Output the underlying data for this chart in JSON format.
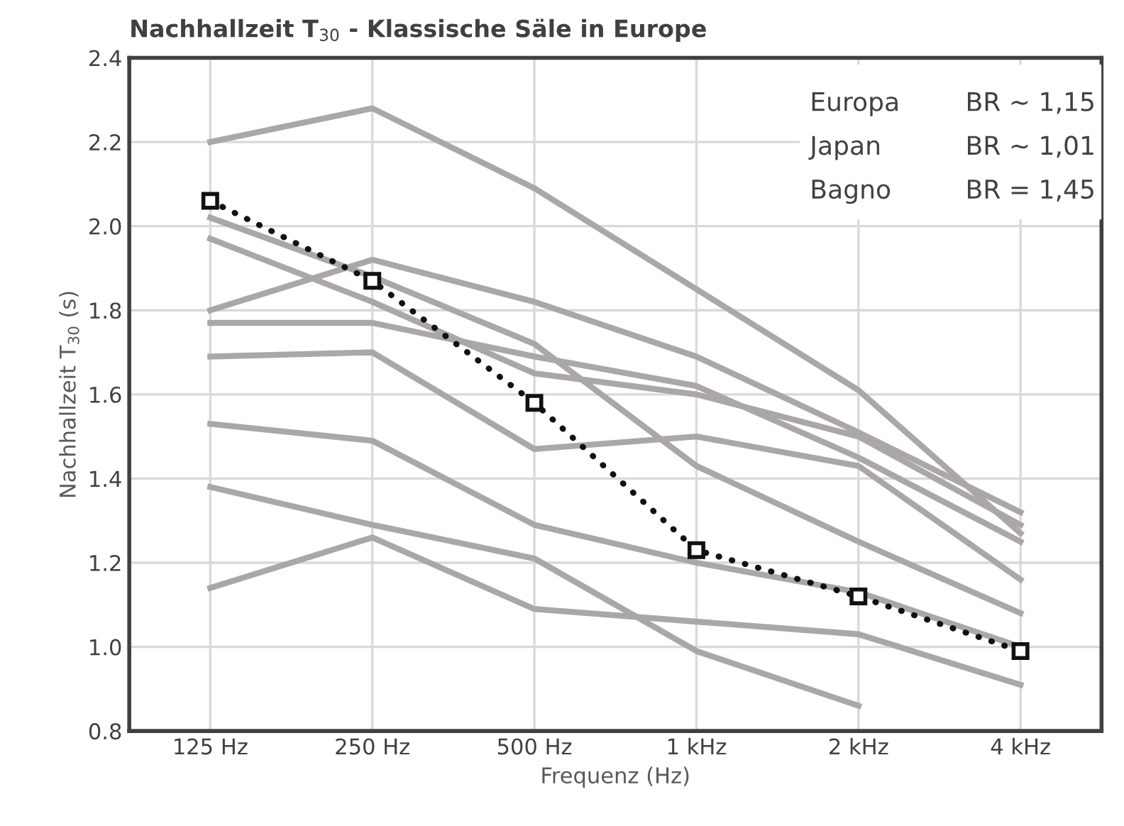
{
  "chart_data": {
    "type": "line",
    "title": "Nachhallzeit T$_{30}$ - Klassische Säle in Europe",
    "xlabel": "Frequenz (Hz)",
    "ylabel": "Nachhallzeit T$_{30}$ (s)",
    "categories": [
      "125 Hz",
      "250 Hz",
      "500 Hz",
      "1 kHz",
      "2 kHz",
      "4 kHz"
    ],
    "ylim": [
      0.8,
      2.4
    ],
    "yticks": [
      {
        "value": 0.8,
        "label": "0.8"
      },
      {
        "value": 1.0,
        "label": "1.0"
      },
      {
        "value": 1.2,
        "label": "1.2"
      },
      {
        "value": 1.4,
        "label": "1.4"
      },
      {
        "value": 1.6,
        "label": "1.6"
      },
      {
        "value": 1.8,
        "label": "1.8"
      },
      {
        "value": 2.0,
        "label": "2.0"
      },
      {
        "value": 2.2,
        "label": "2.2"
      },
      {
        "value": 2.4,
        "label": "2.4"
      }
    ],
    "grid": true,
    "legend": false,
    "series": [
      {
        "color": "#aba7a7",
        "values": [
          2.2,
          2.28,
          2.09,
          1.85,
          1.61,
          1.27
        ]
      },
      {
        "color": "#aba7a7",
        "values": [
          1.8,
          1.92,
          1.82,
          1.69,
          1.51,
          1.32
        ]
      },
      {
        "color": "#aba7a7",
        "values": [
          2.02,
          1.88,
          1.72,
          1.43,
          1.25,
          1.08
        ]
      },
      {
        "color": "#aba7a7",
        "values": [
          1.97,
          1.82,
          1.65,
          1.6,
          1.5,
          1.29
        ]
      },
      {
        "color": "#aba7a7",
        "values": [
          1.77,
          1.77,
          1.69,
          1.62,
          1.45,
          1.25
        ]
      },
      {
        "color": "#aba7a7",
        "values": [
          1.69,
          1.7,
          1.47,
          1.5,
          1.43,
          1.16
        ]
      },
      {
        "color": "#aba7a7",
        "values": [
          1.53,
          1.49,
          1.29,
          1.2,
          1.13,
          1.0
        ]
      },
      {
        "color": "#aba7a7",
        "values": [
          1.38,
          1.29,
          1.21,
          0.99,
          0.86,
          null
        ]
      },
      {
        "color": "#aba7a7",
        "values": [
          1.14,
          1.26,
          1.09,
          1.06,
          1.03,
          0.91
        ]
      },
      {
        "color": "#111111",
        "values": [
          2.06,
          1.87,
          1.58,
          1.23,
          1.12,
          0.99
        ],
        "marker": "square",
        "line_style": "dotted"
      }
    ],
    "annotations": [
      "Europa",
      "BR ~ 1,15",
      "Japan",
      "BR ~ 1,01",
      "Bagno",
      "BR = 1,45"
    ]
  }
}
